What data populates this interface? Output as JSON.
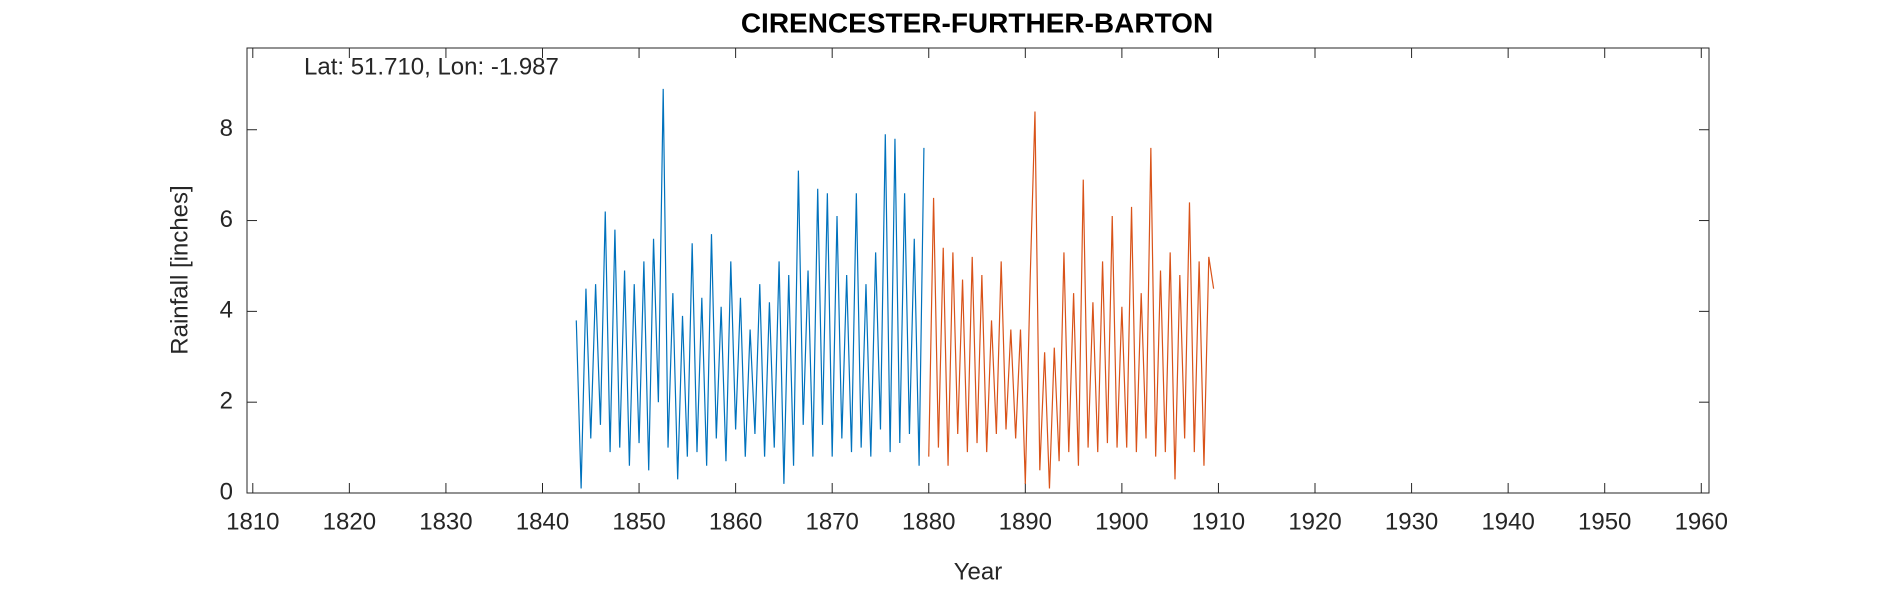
{
  "chart_data": {
    "type": "line",
    "title": "CIRENCESTER-FURTHER-BARTON",
    "annotation": "Lat: 51.710, Lon: -1.987",
    "xlabel": "Year",
    "ylabel": "Rainfall [inches]",
    "xlim": [
      1809.4,
      1960.8
    ],
    "ylim": [
      0,
      9.8
    ],
    "xticks": [
      1810,
      1820,
      1830,
      1840,
      1850,
      1860,
      1870,
      1880,
      1890,
      1900,
      1910,
      1920,
      1930,
      1940,
      1950,
      1960
    ],
    "yticks": [
      0,
      2,
      4,
      6,
      8
    ],
    "grid": false,
    "series": [
      {
        "color": "#0072bd",
        "x": [
          1843.5,
          1844,
          1844.5,
          1845,
          1845.5,
          1846,
          1846.5,
          1847,
          1847.5,
          1848,
          1848.5,
          1849,
          1849.5,
          1850,
          1850.5,
          1851,
          1851.5,
          1852,
          1852.5,
          1853,
          1853.5,
          1854,
          1854.5,
          1855,
          1855.5,
          1856,
          1856.5,
          1857,
          1857.5,
          1858,
          1858.5,
          1859,
          1859.5,
          1860,
          1860.5,
          1861,
          1861.5,
          1862,
          1862.5,
          1863,
          1863.5,
          1864,
          1864.5,
          1865,
          1865.5,
          1866,
          1866.5,
          1867,
          1867.5,
          1868,
          1868.5,
          1869,
          1869.5,
          1870,
          1870.5,
          1871,
          1871.5,
          1872,
          1872.5,
          1873,
          1873.5,
          1874,
          1874.5,
          1875,
          1875.5,
          1876,
          1876.5,
          1877,
          1877.5,
          1878,
          1878.5,
          1879,
          1879.5
        ],
        "values": [
          3.8,
          0.1,
          4.5,
          1.2,
          4.6,
          1.5,
          6.2,
          0.9,
          5.8,
          1.0,
          4.9,
          0.6,
          4.6,
          1.1,
          5.1,
          0.5,
          5.6,
          2.0,
          8.9,
          1.0,
          4.4,
          0.3,
          3.9,
          0.8,
          5.5,
          0.9,
          4.3,
          0.6,
          5.7,
          1.2,
          4.1,
          0.7,
          5.1,
          1.4,
          4.3,
          0.8,
          3.6,
          1.3,
          4.6,
          0.8,
          4.2,
          1.0,
          5.1,
          0.2,
          4.8,
          0.6,
          7.1,
          1.5,
          4.9,
          0.8,
          6.7,
          1.5,
          6.6,
          0.8,
          6.1,
          1.2,
          4.8,
          0.9,
          6.6,
          1.0,
          4.6,
          0.8,
          5.3,
          1.4,
          7.9,
          0.9,
          7.8,
          1.1,
          6.6,
          1.3,
          5.6,
          0.6,
          7.6
        ]
      },
      {
        "color": "#d95319",
        "x": [
          1880,
          1880.5,
          1881,
          1881.5,
          1882,
          1882.5,
          1883,
          1883.5,
          1884,
          1884.5,
          1885,
          1885.5,
          1886,
          1886.5,
          1887,
          1887.5,
          1888,
          1888.5,
          1889,
          1889.5,
          1890,
          1890.5,
          1891,
          1891.5,
          1892,
          1892.5,
          1893,
          1893.5,
          1894,
          1894.5,
          1895,
          1895.5,
          1896,
          1896.5,
          1897,
          1897.5,
          1898,
          1898.5,
          1899,
          1899.5,
          1900,
          1900.5,
          1901,
          1901.5,
          1902,
          1902.5,
          1903,
          1903.5,
          1904,
          1904.5,
          1905,
          1905.5,
          1906,
          1906.5,
          1907,
          1907.5,
          1908,
          1908.5,
          1909,
          1909.5
        ],
        "values": [
          0.8,
          6.5,
          1.0,
          5.4,
          0.6,
          5.3,
          1.3,
          4.7,
          0.9,
          5.2,
          1.1,
          4.8,
          0.9,
          3.8,
          1.3,
          5.1,
          1.4,
          3.6,
          1.2,
          3.6,
          0.2,
          4.7,
          8.4,
          0.5,
          3.1,
          0.1,
          3.2,
          0.7,
          5.3,
          0.9,
          4.4,
          0.6,
          6.9,
          1.0,
          4.2,
          0.9,
          5.1,
          1.1,
          6.1,
          1.0,
          4.1,
          1.0,
          6.3,
          0.9,
          4.4,
          1.2,
          7.6,
          0.8,
          4.9,
          0.9,
          5.3,
          0.3,
          4.8,
          1.2,
          6.4,
          0.9,
          5.1,
          0.6,
          5.2,
          4.5
        ]
      }
    ]
  }
}
